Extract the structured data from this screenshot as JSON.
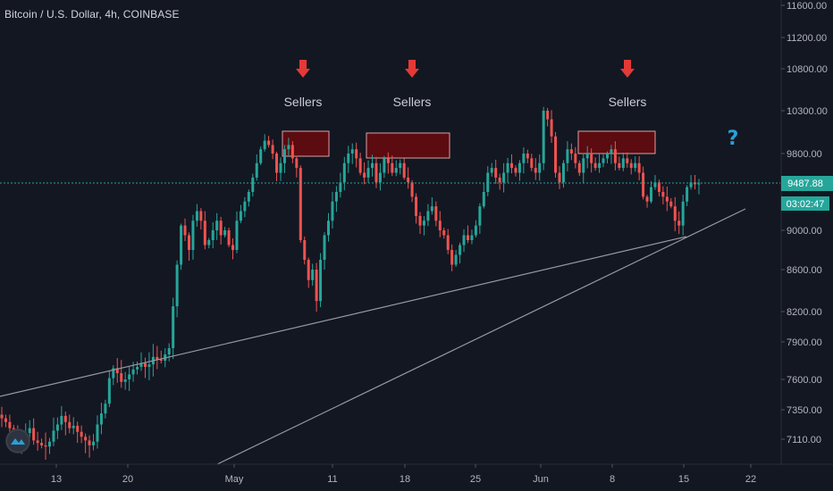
{
  "header": {
    "title": "Bitcoin / U.S. Dollar, 4h, COINBASE"
  },
  "chart_data": {
    "type": "candlestick",
    "symbol": "Bitcoin / U.S. Dollar",
    "interval": "4h",
    "exchange": "COINBASE",
    "y_ticks": [
      11600.0,
      11200.0,
      10800.0,
      10300.0,
      9800.0,
      9000.0,
      8600.0,
      8200.0,
      7900.0,
      7600.0,
      7350.0,
      7110.0
    ],
    "y_tick_labels": [
      "11600.00",
      "11200.00",
      "10800.00",
      "10300.00",
      "9800.00",
      "9000.00",
      "8600.00",
      "8200.00",
      "7900.00",
      "7600.00",
      "7350.00",
      "7110.00"
    ],
    "x_tick_labels": [
      "13",
      "20",
      "May",
      "11",
      "18",
      "25",
      "Jun",
      "8",
      "15",
      "22"
    ],
    "last_price": "9487.88",
    "countdown": "03:02:47",
    "annotations": [
      {
        "text": "Sellers",
        "arrow": "down",
        "color": "#e53935"
      },
      {
        "text": "Sellers",
        "arrow": "down",
        "color": "#e53935"
      },
      {
        "text": "Sellers",
        "arrow": "down",
        "color": "#e53935"
      }
    ],
    "question_mark": "?",
    "colors": {
      "up": "#26a69a",
      "down": "#ef5350",
      "zone_fill": "#5c0b10",
      "zone_border": "#d9a0a4",
      "price_line": "#26a69a",
      "trendline": "#9598a1",
      "background": "#131722",
      "question": "#2a9fd6"
    },
    "closes": [
      7280,
      7250,
      7200,
      7150,
      7080,
      7130,
      7160,
      7200,
      7100,
      7080,
      7060,
      7050,
      7090,
      7180,
      7230,
      7300,
      7250,
      7200,
      7220,
      7170,
      7130,
      7100,
      7060,
      7090,
      7230,
      7320,
      7400,
      7610,
      7690,
      7650,
      7580,
      7600,
      7640,
      7680,
      7700,
      7730,
      7700,
      7720,
      7780,
      7760,
      7750,
      7800,
      7850,
      8250,
      8650,
      9050,
      8950,
      8800,
      9100,
      9200,
      9100,
      8850,
      8900,
      9000,
      9100,
      8950,
      9000,
      8850,
      8800,
      9100,
      9200,
      9300,
      9400,
      9550,
      9700,
      9850,
      9950,
      9900,
      9800,
      9600,
      9700,
      9850,
      9900,
      9750,
      9650,
      8900,
      8700,
      8500,
      8600,
      8300,
      8700,
      8950,
      9100,
      9300,
      9400,
      9500,
      9700,
      9800,
      9850,
      9750,
      9600,
      9550,
      9650,
      9700,
      9500,
      9600,
      9750,
      9700,
      9600,
      9650,
      9700,
      9550,
      9500,
      9350,
      9150,
      9050,
      9100,
      9200,
      9250,
      9100,
      9000,
      8950,
      8800,
      8650,
      8750,
      8850,
      8950,
      8900,
      8950,
      9050,
      9250,
      9400,
      9600,
      9650,
      9550,
      9500,
      9600,
      9700,
      9650,
      9600,
      9700,
      9800,
      9750,
      9650,
      9600,
      9700,
      10300,
      10200,
      10000,
      9600,
      9500,
      9700,
      9850,
      9800,
      9700,
      9600,
      9750,
      9800,
      9700,
      9650,
      9700,
      9750,
      9800,
      9850,
      9700,
      9650,
      9750,
      9700,
      9650,
      9700,
      9600,
      9350,
      9300,
      9450,
      9500,
      9400,
      9350,
      9300,
      9250,
      9100,
      9050,
      9300,
      9450,
      9500,
      9480,
      9487.88
    ]
  }
}
